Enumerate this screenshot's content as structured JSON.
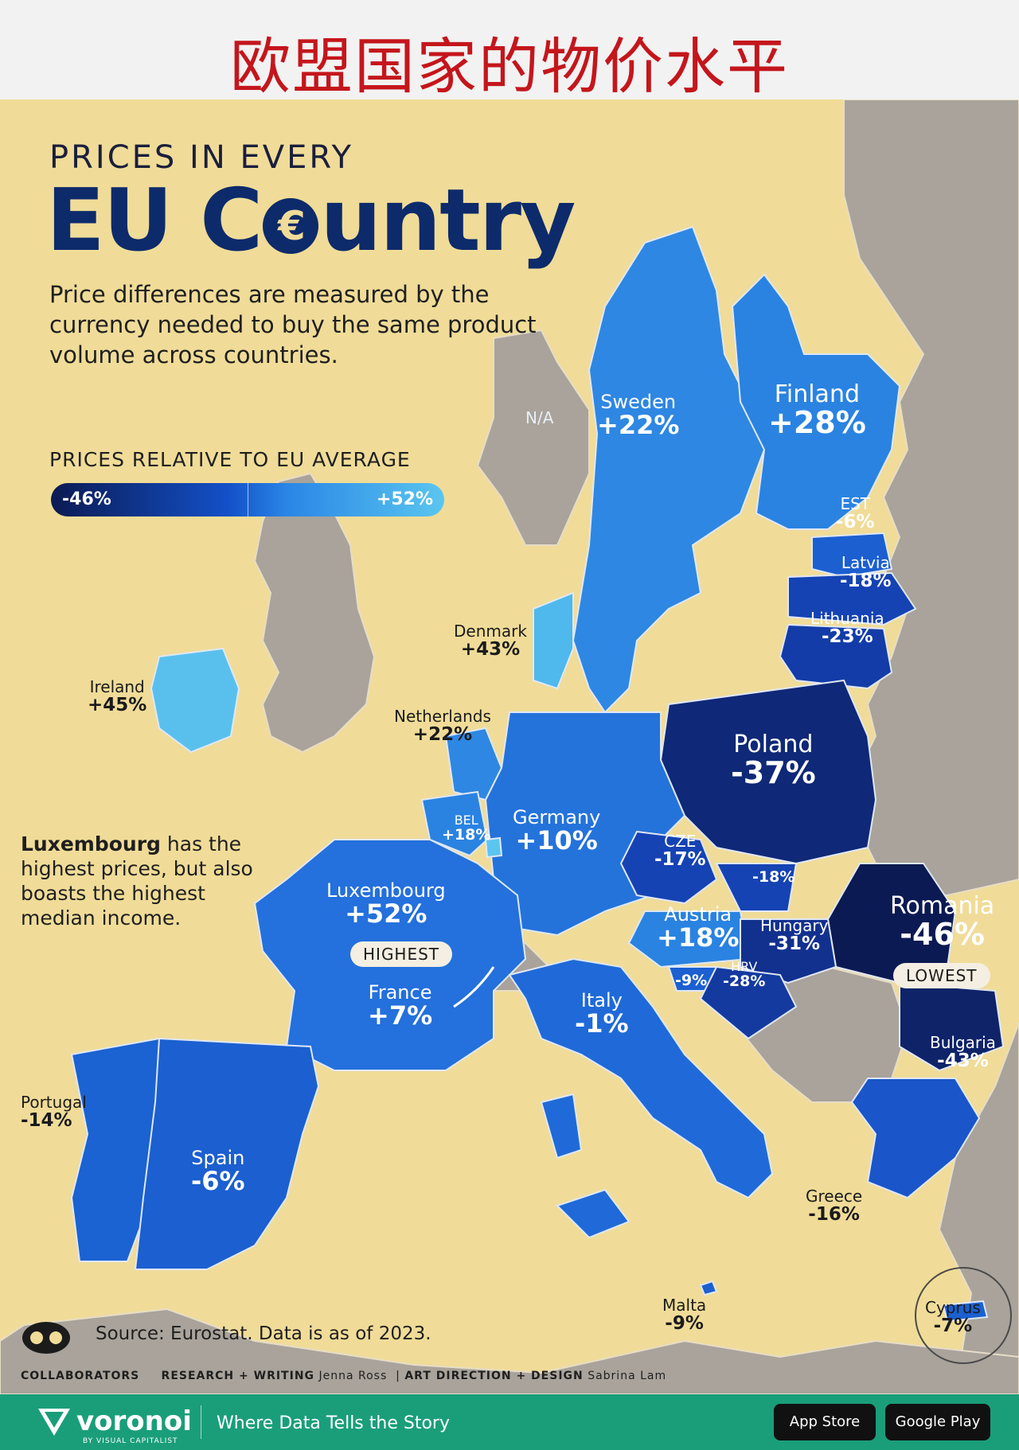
{
  "banner": {
    "title": "欧盟国家的物价水平"
  },
  "header": {
    "kicker": "PRICES IN EVERY",
    "headline": "EU Country",
    "description": "Price differences are measured by the currency needed to buy the same product volume across countries."
  },
  "legend": {
    "title": "PRICES RELATIVE TO EU AVERAGE",
    "min_label": "-46%",
    "max_label": "+52%",
    "color_low": "#0b1a52",
    "color_high": "#5ac6ef"
  },
  "na_label": "N/A",
  "countries": [
    {
      "name": "Sweden",
      "value": "+22%",
      "pct": 22
    },
    {
      "name": "Finland",
      "value": "+28%",
      "pct": 28
    },
    {
      "name": "EST",
      "value": "-6%",
      "pct": -6
    },
    {
      "name": "Latvia",
      "value": "-18%",
      "pct": -18
    },
    {
      "name": "Lithuania",
      "value": "-23%",
      "pct": -23
    },
    {
      "name": "Denmark",
      "value": "+43%",
      "pct": 43
    },
    {
      "name": "Ireland",
      "value": "+45%",
      "pct": 45
    },
    {
      "name": "Netherlands",
      "value": "+22%",
      "pct": 22
    },
    {
      "name": "Poland",
      "value": "-37%",
      "pct": -37
    },
    {
      "name": "Germany",
      "value": "+10%",
      "pct": 10
    },
    {
      "name": "BEL",
      "value": "+18%",
      "pct": 18
    },
    {
      "name": "CZE",
      "value": "-17%",
      "pct": -17
    },
    {
      "name": "",
      "value": "-18%",
      "pct": -18
    },
    {
      "name": "Luxembourg",
      "value": "+52%",
      "pct": 52,
      "badge": "HIGHEST"
    },
    {
      "name": "Romania",
      "value": "-46%",
      "pct": -46,
      "badge": "LOWEST"
    },
    {
      "name": "Austria",
      "value": "+18%",
      "pct": 18
    },
    {
      "name": "Hungary",
      "value": "-31%",
      "pct": -31
    },
    {
      "name": "",
      "value": "-9%",
      "pct": -9
    },
    {
      "name": "HRV",
      "value": "-28%",
      "pct": -28
    },
    {
      "name": "France",
      "value": "+7%",
      "pct": 7
    },
    {
      "name": "Italy",
      "value": "-1%",
      "pct": -1
    },
    {
      "name": "Bulgaria",
      "value": "-43%",
      "pct": -43
    },
    {
      "name": "Portugal",
      "value": "-14%",
      "pct": -14
    },
    {
      "name": "Spain",
      "value": "-6%",
      "pct": -6
    },
    {
      "name": "Greece",
      "value": "-16%",
      "pct": -16
    },
    {
      "name": "Malta",
      "value": "-9%",
      "pct": -9
    },
    {
      "name": "Cyprus",
      "value": "-7%",
      "pct": -7
    }
  ],
  "callout": {
    "bold": "Luxembourg",
    "text": " has the highest prices, but also boasts the highest median income."
  },
  "source": "Source: Eurostat. Data is as of 2023.",
  "credits": {
    "collaborators": "COLLABORATORS",
    "research_key": "RESEARCH + WRITING",
    "research_val": "Jenna Ross",
    "design_key": "ART DIRECTION + DESIGN",
    "design_val": "Sabrina Lam"
  },
  "footer": {
    "brand": "voronoi",
    "brand_sub": "BY VISUAL CAPITALIST",
    "tagline": "Where Data Tells the Story",
    "app_store": "App Store",
    "google_play": "Google Play"
  },
  "colors": {
    "sea": "#f0dc98",
    "non_eu": "#a9a39b",
    "border": "#dfe7f5"
  }
}
